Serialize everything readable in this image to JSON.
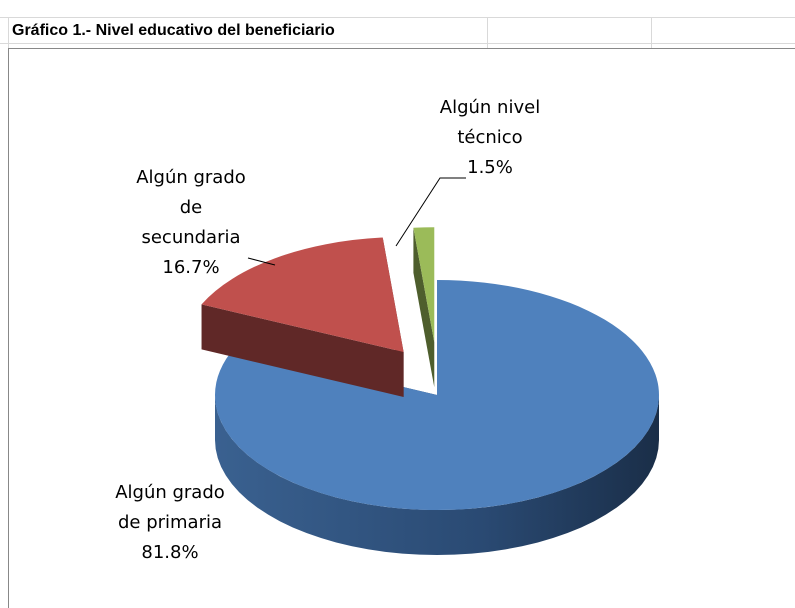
{
  "chart_data": {
    "type": "pie",
    "title": "Gráfico 1.- Nivel educativo del beneficiario",
    "categories": [
      "Algún grado de primaria",
      "Algún grado de secundaria",
      "Algún nivel técnico"
    ],
    "values": [
      81.8,
      16.7,
      1.5
    ],
    "value_labels": [
      "81.8%",
      "16.7%",
      "1.5%"
    ],
    "colors": [
      "#4f81bd",
      "#c0504d",
      "#9bbb59"
    ]
  }
}
